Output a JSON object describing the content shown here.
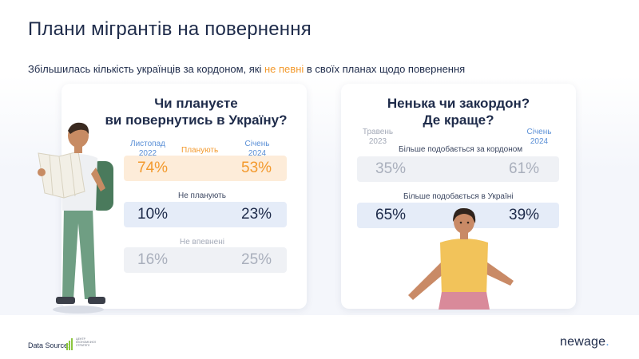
{
  "page": {
    "title": "Плани мігрантів на повернення",
    "subtitle_before": "Збільшилась кількість українців за кордоном, які ",
    "subtitle_highlight": "не певні",
    "subtitle_after": " в своїх планах щодо повернення",
    "data_source_label": "Data Source:",
    "brand_name": "newage",
    "brand_dot": ".",
    "source_logo_text": [
      "ЦЕНТР",
      "ЕКОНОМІЧНОЇ",
      "СТРАТЕГІЇ"
    ]
  },
  "colors": {
    "accent_orange": "#f39a2e",
    "accent_blue": "#5a8fd6",
    "text_dark": "#1e2b4a",
    "muted": "#a4aab8"
  },
  "chart_data": [
    {
      "type": "table",
      "title_line1": "Чи плануєте",
      "title_line2": "ви повернутись в Україну?",
      "columns": [
        {
          "line1": "Листопад",
          "line2": "2022"
        },
        {
          "line1": "Січень",
          "line2": "2024"
        }
      ],
      "rows": [
        {
          "label": "Планують",
          "values": [
            "74%",
            "53%"
          ],
          "style": "orange"
        },
        {
          "label": "Не планують",
          "values": [
            "10%",
            "23%"
          ],
          "style": "blue"
        },
        {
          "label": "Не впевнені",
          "values": [
            "16%",
            "25%"
          ],
          "style": "grey"
        }
      ]
    },
    {
      "type": "table",
      "title_line1": "Ненька чи закордон?",
      "title_line2": "Де краще?",
      "columns": [
        {
          "line1": "Травень",
          "line2": "2023"
        },
        {
          "line1": "Січень",
          "line2": "2024"
        }
      ],
      "rows": [
        {
          "label": "Більше подобається за кордоном",
          "values": [
            "35%",
            "61%"
          ],
          "style": "grey"
        },
        {
          "label": "Більше подобається в Україні",
          "values": [
            "65%",
            "39%"
          ],
          "style": "blue"
        }
      ]
    }
  ]
}
